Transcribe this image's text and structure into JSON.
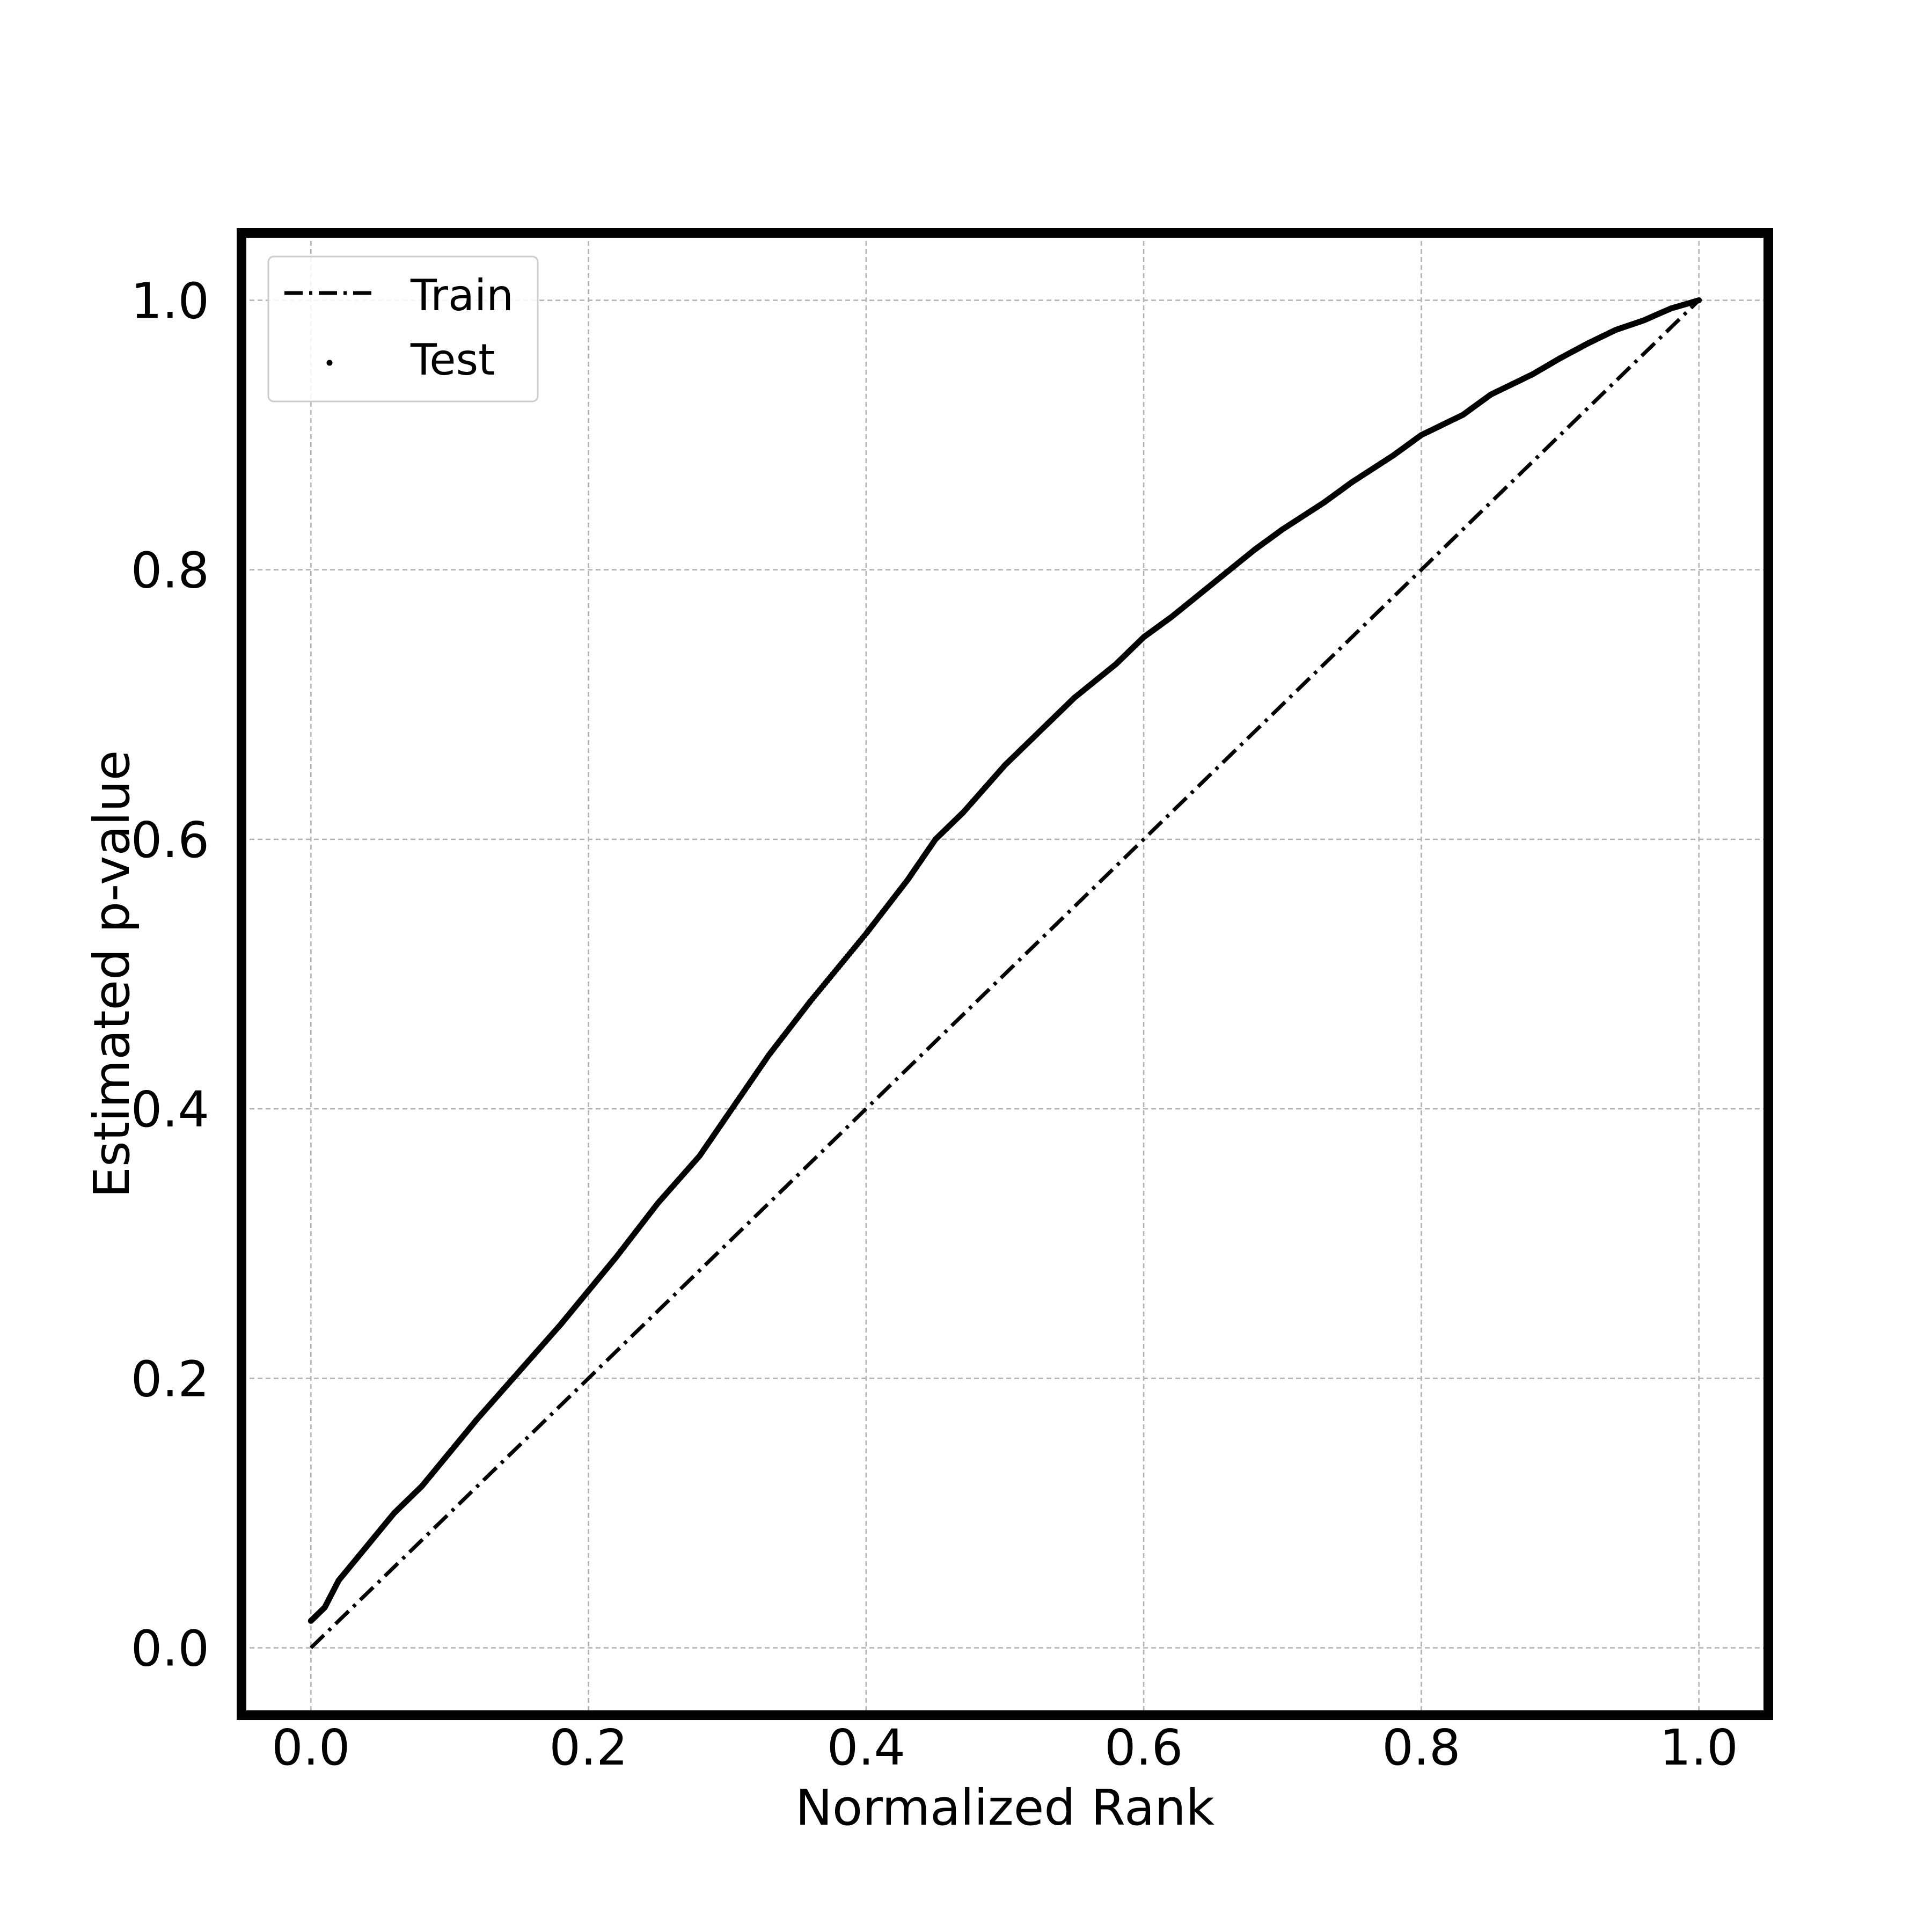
{
  "chart_data": {
    "type": "line",
    "xlabel": "Normalized Rank",
    "ylabel": "Estimated p-value",
    "xlim": [
      -0.05,
      1.05
    ],
    "ylim": [
      -0.05,
      1.05
    ],
    "xticks": [
      0.0,
      0.2,
      0.4,
      0.6,
      0.8,
      1.0
    ],
    "yticks": [
      0.0,
      0.2,
      0.4,
      0.6,
      0.8,
      1.0
    ],
    "xtick_labels": [
      "0.0",
      "0.2",
      "0.4",
      "0.6",
      "0.8",
      "1.0"
    ],
    "ytick_labels": [
      "0.0",
      "0.2",
      "0.4",
      "0.6",
      "0.8",
      "1.0"
    ],
    "grid": true,
    "legend_position": "top-left",
    "series": [
      {
        "name": "Train",
        "style": "dash-dot",
        "color": "#000000",
        "x": [
          0.0,
          1.0
        ],
        "y": [
          0.0,
          1.0
        ]
      },
      {
        "name": "Test",
        "style": "dots",
        "color": "#000000",
        "x": [
          0.0,
          0.01,
          0.02,
          0.04,
          0.06,
          0.08,
          0.1,
          0.12,
          0.15,
          0.18,
          0.2,
          0.22,
          0.25,
          0.28,
          0.3,
          0.33,
          0.36,
          0.4,
          0.43,
          0.45,
          0.47,
          0.5,
          0.53,
          0.55,
          0.58,
          0.6,
          0.62,
          0.65,
          0.68,
          0.7,
          0.73,
          0.75,
          0.78,
          0.8,
          0.83,
          0.85,
          0.88,
          0.9,
          0.92,
          0.94,
          0.96,
          0.98,
          1.0
        ],
        "y": [
          0.02,
          0.03,
          0.05,
          0.075,
          0.1,
          0.12,
          0.145,
          0.17,
          0.205,
          0.24,
          0.265,
          0.29,
          0.33,
          0.365,
          0.395,
          0.44,
          0.48,
          0.53,
          0.57,
          0.6,
          0.62,
          0.655,
          0.685,
          0.705,
          0.73,
          0.75,
          0.765,
          0.79,
          0.815,
          0.83,
          0.85,
          0.865,
          0.885,
          0.9,
          0.915,
          0.93,
          0.945,
          0.957,
          0.968,
          0.978,
          0.985,
          0.994,
          1.0
        ]
      }
    ]
  }
}
